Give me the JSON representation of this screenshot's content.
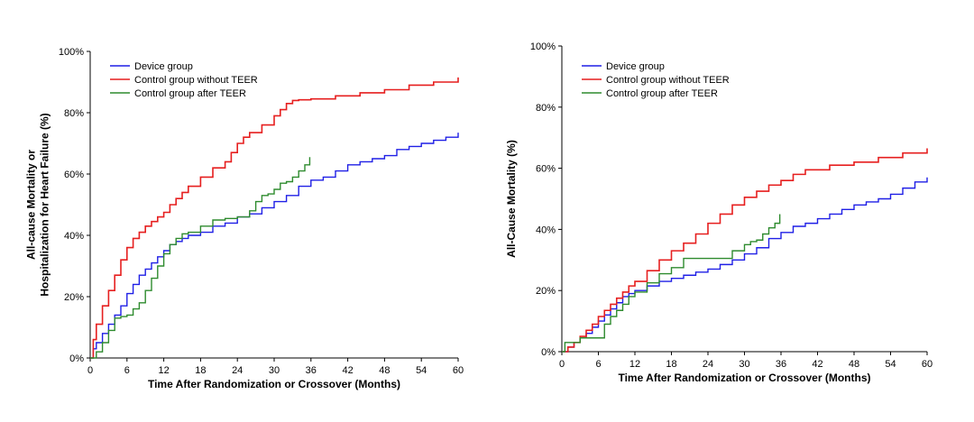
{
  "chart_data": [
    {
      "type": "line",
      "step": true,
      "xlabel": "Time After Randomization or Crossover (Months)",
      "ylabel": [
        "All-cause Mortality or",
        "Hospitalization for Heart Failure (%)"
      ],
      "xlim": [
        0,
        60
      ],
      "ylim": [
        0,
        100
      ],
      "xticks": [
        "0",
        "6",
        "12",
        "18",
        "24",
        "30",
        "36",
        "42",
        "48",
        "54",
        "60"
      ],
      "yticks": [
        "0%",
        "20%",
        "40%",
        "60%",
        "80%",
        "100%"
      ],
      "legend": "top-left",
      "grid": false,
      "series": [
        {
          "name": "Device group",
          "color": "#1f1fe6",
          "x": [
            0,
            0.5,
            1,
            2,
            3,
            4,
            5,
            6,
            7,
            8,
            9,
            10,
            11,
            12,
            13,
            14,
            15,
            16,
            18,
            20,
            22,
            24,
            26,
            28,
            30,
            32,
            34,
            36,
            38,
            40,
            42,
            44,
            46,
            48,
            50,
            52,
            54,
            56,
            58,
            60
          ],
          "y": [
            0,
            3,
            5,
            8,
            11,
            14,
            17,
            21,
            24,
            27,
            29,
            31,
            33,
            35,
            37,
            38,
            39,
            40,
            41,
            43,
            44,
            46,
            47,
            49,
            51,
            53,
            56,
            58,
            59,
            61,
            63,
            64,
            65,
            66,
            68,
            69,
            70,
            71,
            72,
            73.5
          ]
        },
        {
          "name": "Control group without TEER",
          "color": "#e61f1f",
          "x": [
            0,
            0.5,
            1,
            2,
            3,
            4,
            5,
            6,
            7,
            8,
            9,
            10,
            11,
            12,
            13,
            14,
            15,
            16,
            18,
            20,
            22,
            23,
            24,
            25,
            26,
            28,
            30,
            31,
            32,
            33,
            34,
            36,
            40,
            44,
            48,
            52,
            56,
            60
          ],
          "y": [
            0,
            6,
            11,
            17,
            22,
            27,
            32,
            36,
            39,
            41,
            43,
            44.5,
            46,
            47.5,
            50,
            52,
            54,
            56,
            59,
            62,
            64,
            67,
            70,
            72,
            73.5,
            76,
            79,
            81,
            83,
            84,
            84.2,
            84.5,
            85.5,
            86.5,
            87.5,
            89,
            90,
            91.5
          ]
        },
        {
          "name": "Control group after TEER",
          "color": "#2e8b2e",
          "x": [
            0,
            1,
            2,
            3,
            4,
            5,
            6,
            7,
            8,
            9,
            10,
            11,
            12,
            13,
            14,
            15,
            16,
            18,
            20,
            22,
            24,
            26,
            27,
            28,
            29,
            30,
            31,
            32,
            33,
            34,
            35,
            35.8
          ],
          "y": [
            0,
            2,
            5,
            9,
            13,
            13.5,
            14,
            16,
            18,
            22,
            26,
            30,
            34,
            37,
            39,
            40.5,
            41,
            43,
            45,
            45.5,
            46,
            48,
            51,
            53,
            53.5,
            55,
            57,
            57.5,
            59,
            61,
            63,
            65.5
          ]
        }
      ]
    },
    {
      "type": "line",
      "step": true,
      "xlabel": "Time After Randomization or Crossover (Months)",
      "ylabel": [
        "All-Cause Mortality (%)"
      ],
      "xlim": [
        0,
        60
      ],
      "ylim": [
        0,
        100
      ],
      "xticks": [
        "0",
        "6",
        "12",
        "18",
        "24",
        "30",
        "36",
        "42",
        "48",
        "54",
        "60"
      ],
      "yticks": [
        "0%",
        "20%",
        "40%",
        "60%",
        "80%",
        "100%"
      ],
      "legend": "top-left",
      "grid": false,
      "series": [
        {
          "name": "Device group",
          "color": "#1f1fe6",
          "x": [
            0,
            1,
            2,
            3,
            4,
            5,
            6,
            7,
            8,
            9,
            10,
            11,
            12,
            14,
            16,
            18,
            20,
            22,
            24,
            26,
            28,
            30,
            32,
            34,
            36,
            38,
            40,
            42,
            44,
            46,
            48,
            50,
            52,
            54,
            56,
            58,
            60
          ],
          "y": [
            0,
            1.5,
            3,
            4.5,
            6,
            8,
            10,
            12,
            14,
            16,
            18,
            19,
            20,
            21.5,
            23,
            24,
            25,
            26,
            27,
            28.5,
            30,
            32,
            34,
            37,
            39,
            41,
            42,
            43.5,
            45,
            46.5,
            48,
            49,
            50,
            51.5,
            53.5,
            55.5,
            57
          ]
        },
        {
          "name": "Control group without TEER",
          "color": "#e61f1f",
          "x": [
            0,
            1,
            2,
            3,
            4,
            5,
            6,
            7,
            8,
            9,
            10,
            11,
            12,
            14,
            16,
            18,
            20,
            22,
            24,
            26,
            28,
            30,
            32,
            34,
            36,
            38,
            40,
            44,
            48,
            52,
            56,
            60
          ],
          "y": [
            0,
            1.5,
            3,
            5,
            7,
            9,
            11.5,
            13.5,
            15.5,
            17.5,
            19.5,
            21.5,
            23,
            26.5,
            30,
            33,
            35.5,
            38.5,
            42,
            45,
            48,
            50.5,
            52.5,
            54.5,
            56,
            58,
            59.5,
            61,
            62,
            63.5,
            65,
            66.5
          ]
        },
        {
          "name": "Control group after TEER",
          "color": "#2e8b2e",
          "x": [
            0,
            0.5,
            2,
            3,
            4,
            6,
            7,
            8,
            9,
            10,
            11,
            12,
            14,
            16,
            18,
            20,
            22,
            24,
            26,
            28,
            30,
            31,
            32,
            33,
            34,
            35,
            35.8
          ],
          "y": [
            0,
            3,
            3,
            4.5,
            4.5,
            4.5,
            9,
            11.5,
            13.5,
            15.5,
            18,
            19.5,
            22.5,
            25.5,
            27.5,
            30.5,
            30.5,
            30.5,
            30.5,
            33,
            35,
            36,
            36.5,
            38.5,
            40.5,
            42,
            45
          ]
        }
      ]
    }
  ]
}
